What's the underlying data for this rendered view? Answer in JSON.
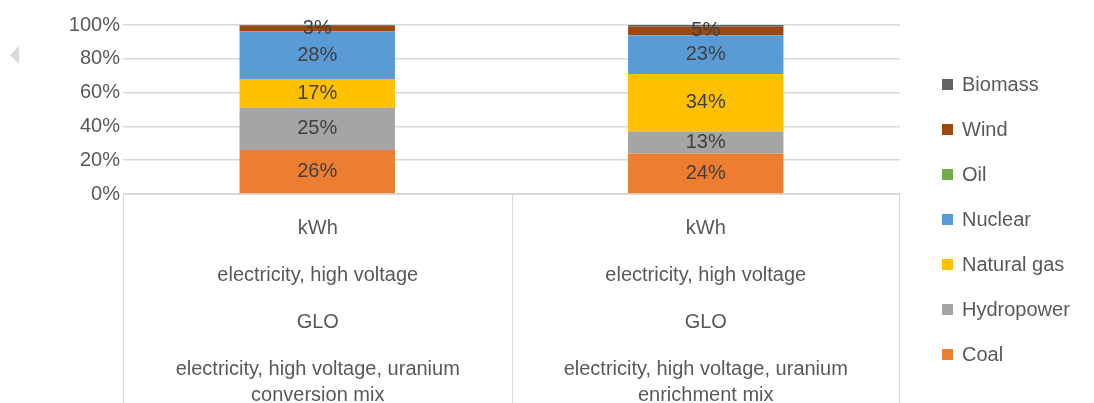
{
  "chart_data": {
    "type": "bar",
    "stacked": true,
    "categories": [
      "kWh\nelectricity, high voltage\nGLO\nelectricity, high voltage, uranium conversion mix",
      "kWh\nelectricity, high voltage\nGLO\nelectricity, high voltage, uranium enrichment mix"
    ],
    "series": [
      {
        "name": "Coal",
        "color": "#ed7d31",
        "values": [
          26,
          24
        ],
        "value_labels": [
          "26%",
          "24%"
        ]
      },
      {
        "name": "Hydropower",
        "color": "#a5a5a5",
        "values": [
          25,
          13
        ],
        "value_labels": [
          "25%",
          "13%"
        ]
      },
      {
        "name": "Natural gas",
        "color": "#ffc000",
        "values": [
          17,
          34
        ],
        "value_labels": [
          "17%",
          "34%"
        ]
      },
      {
        "name": "Nuclear",
        "color": "#5b9bd5",
        "values": [
          28,
          23
        ],
        "value_labels": [
          "28%",
          "23%"
        ]
      },
      {
        "name": "Oil",
        "color": "#70ad47",
        "values": [
          0.5,
          0
        ],
        "value_labels": [
          null,
          null
        ]
      },
      {
        "name": "Wind",
        "color": "#9e480e",
        "values": [
          3,
          5
        ],
        "value_labels": [
          "3%",
          "5%"
        ]
      },
      {
        "name": "Biomass",
        "color": "#636363",
        "values": [
          0.5,
          1
        ],
        "value_labels": [
          null,
          null
        ]
      }
    ],
    "ylim": [
      0,
      100
    ],
    "yticks": [
      {
        "value": 0,
        "label": "0%"
      },
      {
        "value": 20,
        "label": "20%"
      },
      {
        "value": 40,
        "label": "40%"
      },
      {
        "value": 60,
        "label": "60%"
      },
      {
        "value": 80,
        "label": "80%"
      },
      {
        "value": 100,
        "label": "100%"
      }
    ],
    "grid": "y",
    "legend": "right"
  }
}
